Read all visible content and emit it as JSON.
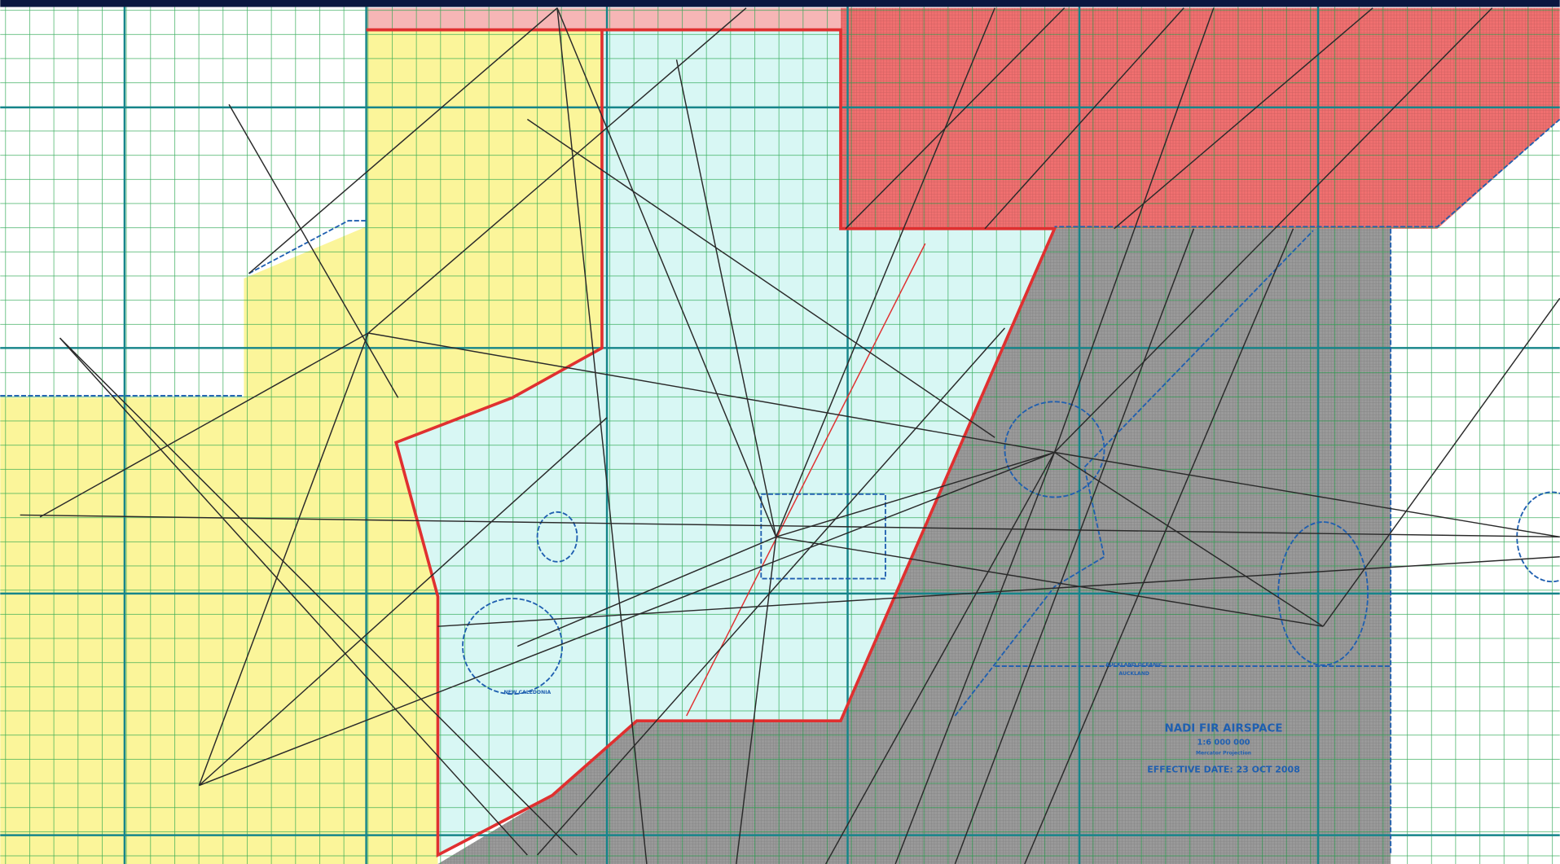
{
  "legend_block": {
    "title": "NADI FIR AIRSPACE",
    "scale": "1:6 000 000",
    "projection": "Mercator Projection",
    "effective_date": "EFFECTIVE DATE: 23 OCT 2008"
  },
  "region_labels": [
    "NEW CALEDONIA",
    "AUCKLAND OCEANIC",
    "AUCKLAND"
  ]
}
